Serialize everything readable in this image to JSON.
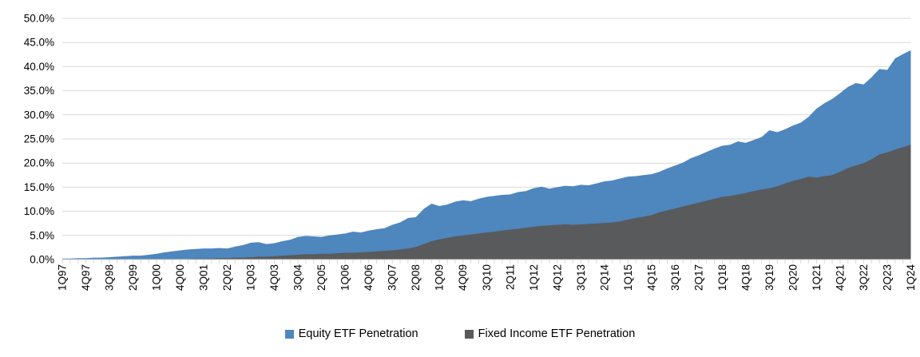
{
  "chart_data": {
    "type": "area",
    "title": "",
    "subtitle": "",
    "xlabel": "",
    "ylabel": "",
    "ylim": [
      0,
      50
    ],
    "y_tick_step": 5,
    "grid": "horizontal",
    "gridline_color": "#D9D9D9",
    "tick_color": "#D9D9D9",
    "text_color": "#000000",
    "legend_position": "bottom-center",
    "area_mode": "overlapped",
    "x_start": "1Q97",
    "x_end": "1Q24",
    "x_frequency": "quarterly",
    "x_label_every_n_quarters": 3,
    "y_tick_labels": [
      "50.0%",
      "45.0%",
      "40.0%",
      "35.0%",
      "30.0%",
      "25.0%",
      "20.0%",
      "15.0%",
      "10.0%",
      "5.0%",
      "0.0%"
    ],
    "x_tick_labels": [
      "1Q97",
      "4Q97",
      "3Q98",
      "2Q99",
      "1Q00",
      "4Q00",
      "3Q01",
      "2Q02",
      "1Q03",
      "4Q03",
      "3Q04",
      "2Q05",
      "1Q06",
      "4Q06",
      "3Q07",
      "2Q08",
      "1Q09",
      "4Q09",
      "3Q10",
      "2Q11",
      "1Q12",
      "4Q12",
      "3Q13",
      "2Q14",
      "1Q15",
      "4Q15",
      "3Q16",
      "2Q17",
      "1Q18",
      "4Q18",
      "3Q19",
      "2Q20",
      "1Q21",
      "4Q21",
      "3Q22",
      "2Q23",
      "1Q24"
    ],
    "series": [
      {
        "name": "Equity ETF Penetration",
        "color": "#4E86BE",
        "values": [
          0.2,
          0.2,
          0.3,
          0.3,
          0.4,
          0.4,
          0.5,
          0.6,
          0.7,
          0.8,
          0.8,
          1.0,
          1.2,
          1.5,
          1.7,
          1.9,
          2.1,
          2.2,
          2.3,
          2.3,
          2.4,
          2.3,
          2.7,
          3.0,
          3.5,
          3.6,
          3.2,
          3.4,
          3.8,
          4.1,
          4.7,
          4.9,
          4.8,
          4.7,
          5.0,
          5.2,
          5.4,
          5.8,
          5.6,
          6.0,
          6.3,
          6.5,
          7.2,
          7.7,
          8.6,
          8.8,
          10.5,
          11.6,
          11.1,
          11.4,
          12.0,
          12.3,
          12.1,
          12.6,
          13.0,
          13.2,
          13.4,
          13.5,
          14.0,
          14.2,
          14.8,
          15.1,
          14.7,
          15.0,
          15.3,
          15.2,
          15.5,
          15.4,
          15.8,
          16.2,
          16.4,
          16.8,
          17.2,
          17.3,
          17.5,
          17.7,
          18.2,
          18.9,
          19.5,
          20.1,
          21.0,
          21.6,
          22.3,
          23.0,
          23.6,
          23.8,
          24.5,
          24.2,
          24.8,
          25.4,
          26.8,
          26.4,
          27.0,
          27.8,
          28.4,
          29.6,
          31.3,
          32.4,
          33.3,
          34.5,
          35.8,
          36.6,
          36.3,
          37.8,
          39.5,
          39.3,
          41.7,
          42.6,
          43.4
        ]
      },
      {
        "name": "Fixed Income ETF Penetration",
        "color": "#595A5C",
        "values": [
          0.0,
          0.0,
          0.0,
          0.0,
          0.0,
          0.0,
          0.1,
          0.1,
          0.1,
          0.1,
          0.1,
          0.1,
          0.1,
          0.1,
          0.1,
          0.1,
          0.1,
          0.2,
          0.2,
          0.2,
          0.3,
          0.3,
          0.4,
          0.4,
          0.5,
          0.6,
          0.6,
          0.7,
          0.8,
          0.9,
          1.0,
          1.1,
          1.1,
          1.2,
          1.2,
          1.3,
          1.4,
          1.4,
          1.5,
          1.6,
          1.7,
          1.8,
          1.9,
          2.1,
          2.3,
          2.6,
          3.2,
          3.8,
          4.2,
          4.5,
          4.8,
          5.0,
          5.2,
          5.4,
          5.6,
          5.8,
          6.0,
          6.2,
          6.4,
          6.6,
          6.8,
          7.0,
          7.1,
          7.2,
          7.3,
          7.2,
          7.3,
          7.4,
          7.5,
          7.6,
          7.7,
          7.9,
          8.3,
          8.6,
          8.9,
          9.2,
          9.8,
          10.2,
          10.6,
          11.0,
          11.4,
          11.8,
          12.2,
          12.6,
          13.0,
          13.2,
          13.5,
          13.8,
          14.2,
          14.5,
          14.8,
          15.2,
          15.8,
          16.3,
          16.7,
          17.2,
          17.0,
          17.3,
          17.5,
          18.2,
          19.0,
          19.5,
          20.0,
          20.8,
          21.8,
          22.2,
          22.8,
          23.3,
          23.8
        ]
      }
    ]
  }
}
